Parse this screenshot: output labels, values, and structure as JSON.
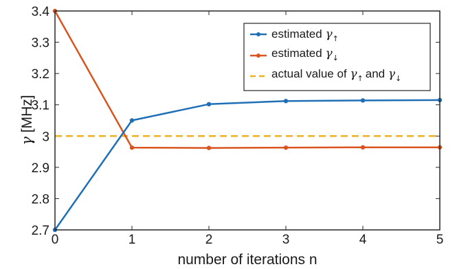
{
  "chart_data": {
    "type": "line",
    "xlabel": "number of iterations n",
    "ylabel_symbol": "γ",
    "ylabel_unit": "[MHz]",
    "xlim": [
      0,
      5
    ],
    "ylim": [
      2.7,
      3.4
    ],
    "x_ticks": [
      0,
      1,
      2,
      3,
      4,
      5
    ],
    "y_ticks": [
      2.7,
      2.8,
      2.9,
      3,
      3.1,
      3.2,
      3.3,
      3.4
    ],
    "y_tick_labels": [
      "2.7",
      "2.8",
      "2.9",
      "3",
      "3.1",
      "3.2",
      "3.3",
      "3.4"
    ],
    "grid": false,
    "legend_position": "top-right",
    "x": [
      0,
      1,
      2,
      3,
      4,
      5
    ],
    "series": [
      {
        "name": "estimated γ↑",
        "name_text": "estimated",
        "symbol": "γ",
        "subscript": "↑",
        "color": "#1f6fb6",
        "style": "solid-with-dots",
        "values": [
          2.7,
          3.05,
          3.102,
          3.112,
          3.114,
          3.115
        ]
      },
      {
        "name": "estimated γ↓",
        "name_text": "estimated",
        "symbol": "γ",
        "subscript": "↓",
        "color": "#d9541e",
        "style": "solid-with-dots",
        "values": [
          3.4,
          2.963,
          2.962,
          2.963,
          2.964,
          2.964
        ]
      },
      {
        "name": "actual value of γ↑ and γ↓",
        "name_text": "actual value of",
        "name_joiner": "and",
        "symbol": "γ",
        "subscript_a": "↑",
        "subscript_b": "↓",
        "color": "#edb120",
        "style": "dashed",
        "values": [
          3,
          3,
          3,
          3,
          3,
          3
        ]
      }
    ]
  }
}
